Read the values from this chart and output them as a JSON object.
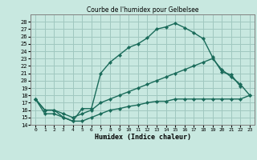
{
  "title": "Courbe de l'humidex pour Gelbelsee",
  "xlabel": "Humidex (Indice chaleur)",
  "bg_color": "#c8e8e0",
  "grid_color": "#a0c8c0",
  "line_color": "#1a6b5a",
  "xlim": [
    -0.5,
    23.5
  ],
  "ylim": [
    14,
    29
  ],
  "yticks": [
    14,
    15,
    16,
    17,
    18,
    19,
    20,
    21,
    22,
    23,
    24,
    25,
    26,
    27,
    28
  ],
  "xticks": [
    0,
    1,
    2,
    3,
    4,
    5,
    6,
    7,
    8,
    9,
    10,
    11,
    12,
    13,
    14,
    15,
    16,
    17,
    18,
    19,
    20,
    21,
    22,
    23
  ],
  "line1_x": [
    0,
    1,
    2,
    3,
    4,
    5,
    6,
    7,
    8,
    9,
    10,
    11,
    12,
    13,
    14,
    15,
    16,
    17,
    18,
    19,
    20,
    21,
    22
  ],
  "line1_y": [
    17.5,
    16.0,
    16.0,
    15.0,
    14.5,
    16.2,
    16.2,
    21.0,
    22.5,
    23.5,
    24.5,
    25.0,
    25.8,
    27.0,
    27.3,
    27.8,
    27.2,
    26.5,
    25.7,
    23.2,
    21.2,
    20.8,
    19.2
  ],
  "line2_x": [
    0,
    1,
    2,
    3,
    4,
    5,
    6,
    7,
    8,
    9,
    10,
    11,
    12,
    13,
    14,
    15,
    16,
    17,
    18,
    19,
    20,
    21,
    22,
    23
  ],
  "line2_y": [
    17.5,
    16.0,
    16.0,
    15.5,
    15.0,
    15.5,
    16.0,
    17.0,
    17.5,
    18.0,
    18.5,
    19.0,
    19.5,
    20.0,
    20.5,
    21.0,
    21.5,
    22.0,
    22.5,
    23.0,
    21.5,
    20.5,
    19.5,
    18.0
  ],
  "line3_x": [
    0,
    1,
    2,
    3,
    4,
    5,
    6,
    7,
    8,
    9,
    10,
    11,
    12,
    13,
    14,
    15,
    16,
    17,
    18,
    19,
    20,
    21,
    22,
    23
  ],
  "line3_y": [
    17.5,
    15.5,
    15.5,
    15.0,
    14.5,
    14.5,
    15.0,
    15.5,
    16.0,
    16.2,
    16.5,
    16.7,
    17.0,
    17.2,
    17.2,
    17.5,
    17.5,
    17.5,
    17.5,
    17.5,
    17.5,
    17.5,
    17.5,
    18.0
  ]
}
